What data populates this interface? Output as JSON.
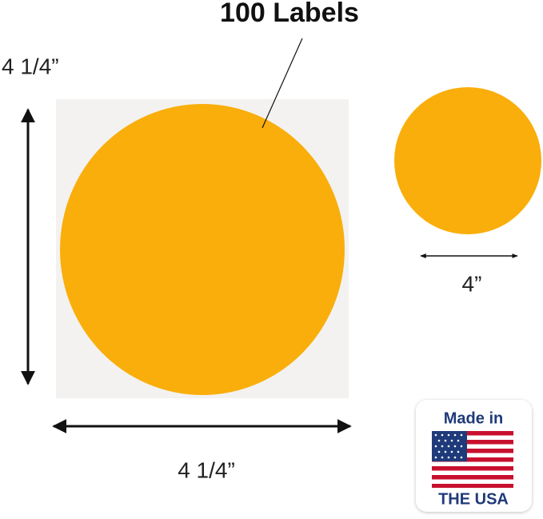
{
  "title": "100 Labels",
  "height_label": "4 1/4”",
  "width_label": "4 1/4”",
  "small_label": "4”",
  "badge": {
    "top": "Made in",
    "bottom": "THE USA"
  }
}
